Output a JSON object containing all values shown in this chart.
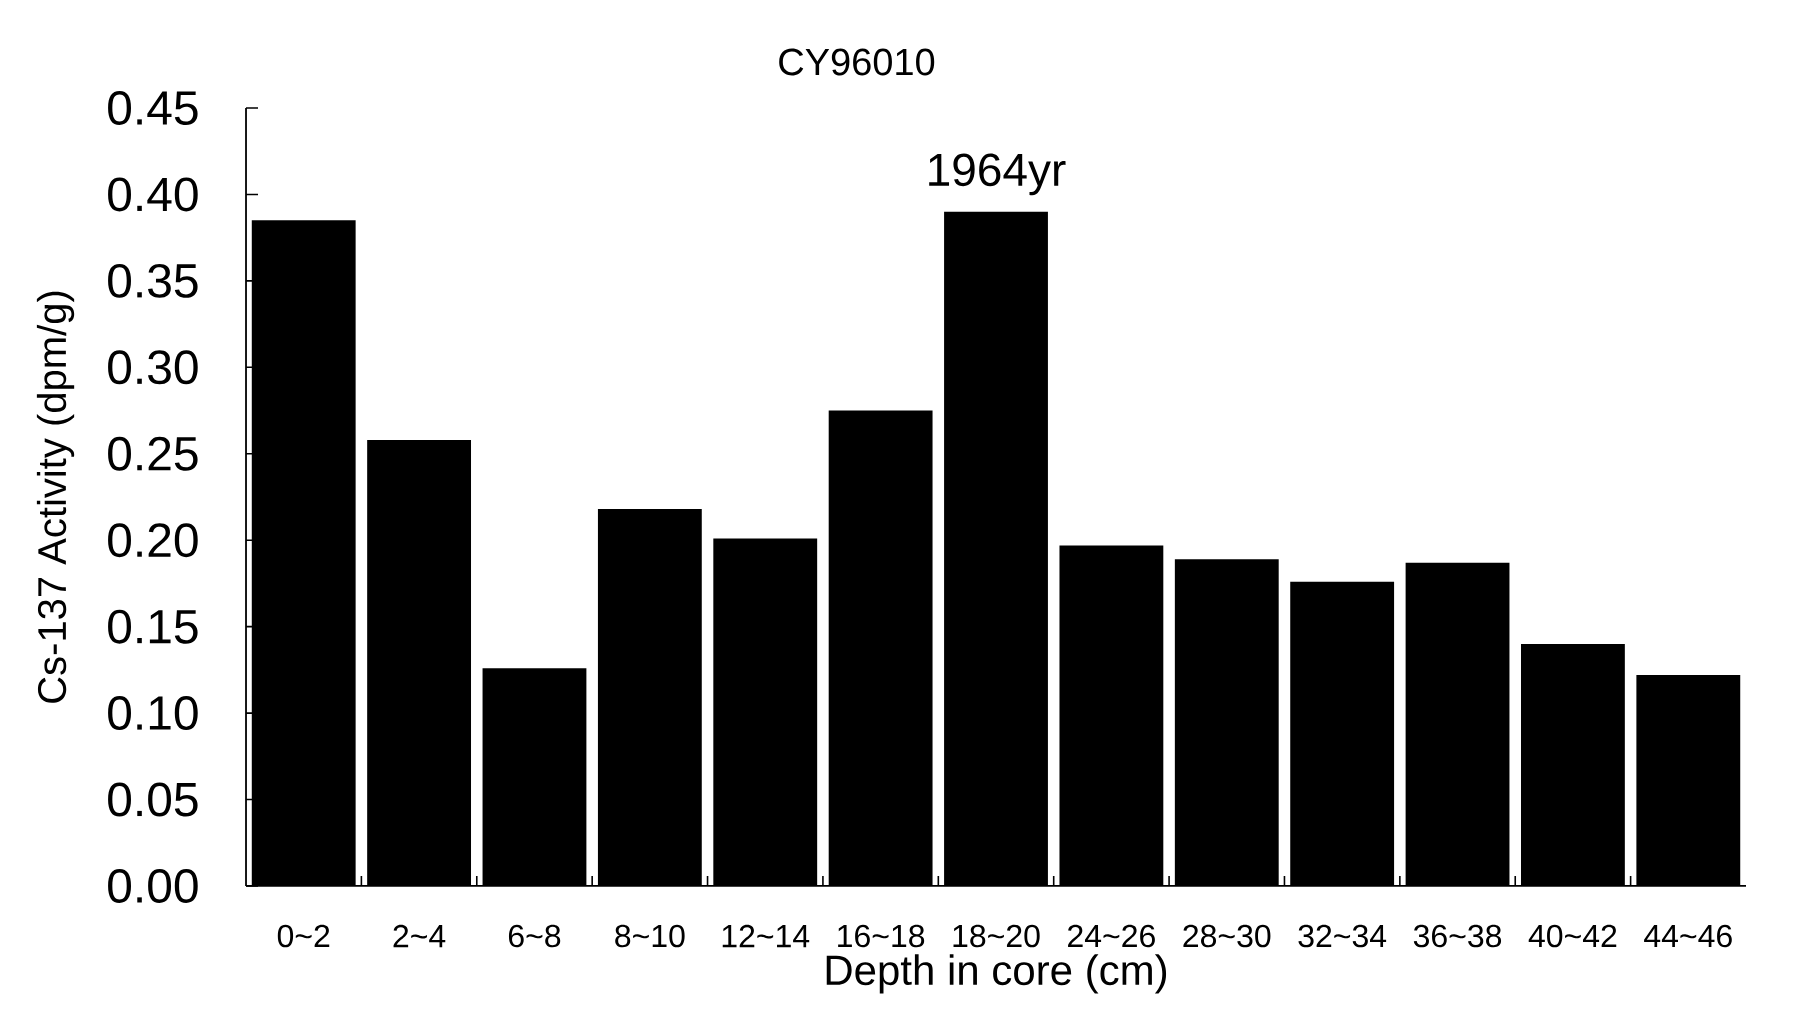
{
  "chart_data": {
    "type": "bar",
    "title": "CY96010",
    "xlabel": "Depth in core (cm)",
    "ylabel": "Cs-137 Activity (dpm/g)",
    "categories": [
      "0~2",
      "2~4",
      "6~8",
      "8~10",
      "12~14",
      "16~18",
      "18~20",
      "24~26",
      "28~30",
      "32~34",
      "36~38",
      "40~42",
      "44~46"
    ],
    "values": [
      0.385,
      0.258,
      0.126,
      0.218,
      0.201,
      0.275,
      0.39,
      0.197,
      0.189,
      0.176,
      0.187,
      0.14,
      0.122
    ],
    "color": "#000000",
    "ylim": [
      0,
      0.45
    ],
    "yticks": [
      {
        "value": 0,
        "label": "0.00"
      },
      {
        "value": 0.05,
        "label": "0.05"
      },
      {
        "value": 0.1,
        "label": "0.10"
      },
      {
        "value": 0.15,
        "label": "0.15"
      },
      {
        "value": 0.2,
        "label": "0.20"
      },
      {
        "value": 0.25,
        "label": "0.25"
      },
      {
        "value": 0.3,
        "label": "0.30"
      },
      {
        "value": 0.35,
        "label": "0.35"
      },
      {
        "value": 0.4,
        "label": "0.40"
      },
      {
        "value": 0.45,
        "label": "0.45"
      }
    ],
    "annotations": [
      {
        "text": "1964yr",
        "x": "18~20",
        "y": 0.39
      }
    ]
  }
}
